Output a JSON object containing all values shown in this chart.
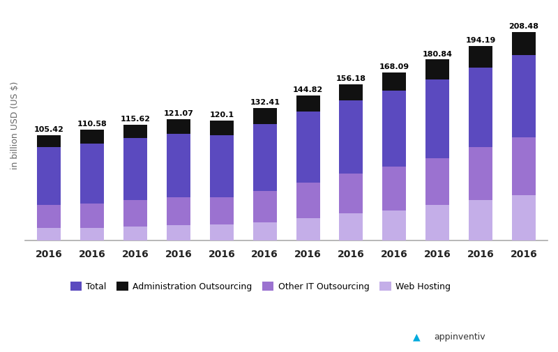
{
  "years": [
    "2016",
    "2016",
    "2016",
    "2016",
    "2016",
    "2016",
    "2016",
    "2016",
    "2016",
    "2016",
    "2016",
    "2016"
  ],
  "totals": [
    105.42,
    110.58,
    115.62,
    121.07,
    120.1,
    132.41,
    144.82,
    156.18,
    168.09,
    180.84,
    194.19,
    208.48
  ],
  "web_hosting": [
    12.0,
    12.5,
    14.0,
    15.0,
    15.5,
    18.0,
    22.0,
    27.0,
    30.0,
    35.0,
    40.0,
    45.0
  ],
  "other_it": [
    23.0,
    24.5,
    26.0,
    28.0,
    27.5,
    31.0,
    36.0,
    40.0,
    44.0,
    47.0,
    53.0,
    58.0
  ],
  "total_purple": [
    58.0,
    60.0,
    62.0,
    63.5,
    62.0,
    67.0,
    71.0,
    73.0,
    76.0,
    79.0,
    80.0,
    82.0
  ],
  "colors": {
    "web_hosting": "#c4aee8",
    "other_it": "#9b72d0",
    "total_purple": "#5b4abf",
    "admin": "#111111"
  },
  "legend_labels": [
    "Total",
    "Administration Outsourcing",
    "Other IT Outsourcing",
    "Web Hosting"
  ],
  "ylabel": "in billion USD (US $)",
  "bar_width": 0.55,
  "ylim": [
    0,
    230
  ],
  "background_color": "#ffffff"
}
